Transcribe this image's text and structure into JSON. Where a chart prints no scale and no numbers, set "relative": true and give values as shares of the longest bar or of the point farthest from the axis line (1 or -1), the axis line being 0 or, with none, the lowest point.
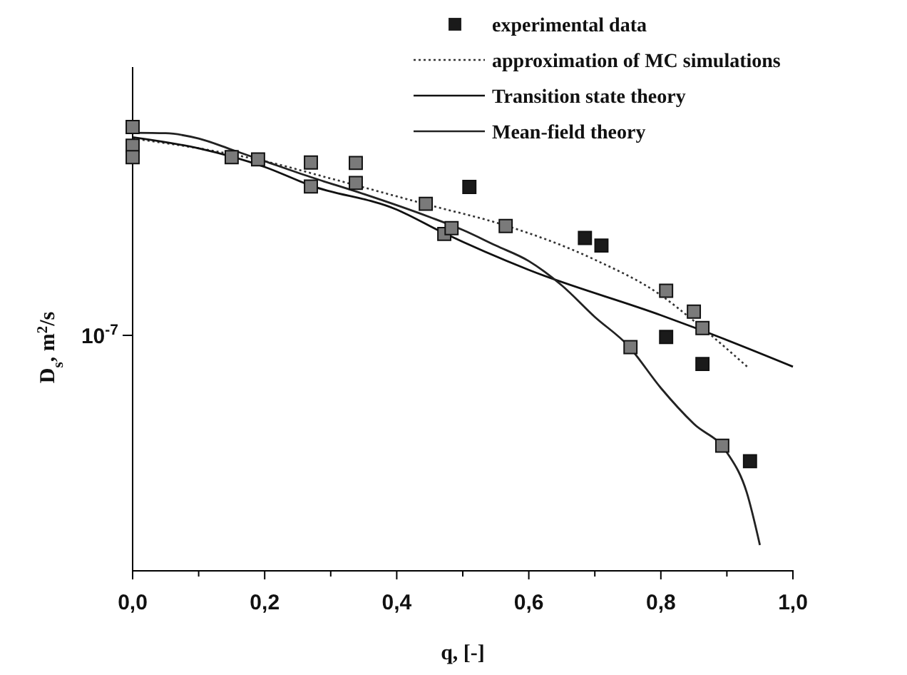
{
  "chart_data": {
    "type": "scatter",
    "relative": true,
    "xlabel": "q, [-]",
    "ylabel": "D$_{s}$, m$^{2}$/s",
    "xlim": [
      0,
      1
    ],
    "xticks": [
      {
        "value": 0,
        "label": "0,0"
      },
      {
        "value": 0.2,
        "label": "0,2"
      },
      {
        "value": 0.4,
        "label": "0,4"
      },
      {
        "value": 0.6,
        "label": "0,6"
      },
      {
        "value": 0.8,
        "label": "0,8"
      },
      {
        "value": 1,
        "label": "1,0"
      }
    ],
    "annotations": [
      "10$^{-7}$"
    ],
    "legend": "top right",
    "grid": false,
    "series": [
      {
        "name": "experimental data",
        "marker": "square",
        "color": "#1a1a1a",
        "x": [
          0,
          0,
          0,
          0.15,
          0.19,
          0.27,
          0.27,
          0.338,
          0.338,
          0.444,
          0.51,
          0.472,
          0.483,
          0.565,
          0.685,
          0.71,
          0.808,
          0.85,
          0.863,
          0.808,
          0.754,
          0.863,
          0.893,
          0.935
        ],
        "values": [
          1.0,
          0.958,
          0.932,
          0.932,
          0.927,
          0.92,
          0.866,
          0.919,
          0.874,
          0.827,
          0.865,
          0.759,
          0.772,
          0.777,
          0.75,
          0.733,
          0.631,
          0.584,
          0.547,
          0.527,
          0.504,
          0.466,
          0.282,
          0.247
        ],
        "colors": [
          "#7a7a7a",
          "#7a7a7a",
          "#7a7a7a",
          "#7a7a7a",
          "#7a7a7a",
          "#7a7a7a",
          "#7a7a7a",
          "#7a7a7a",
          "#7a7a7a",
          "#7a7a7a",
          "#1a1a1a",
          "#7a7a7a",
          "#7a7a7a",
          "#7a7a7a",
          "#1a1a1a",
          "#1a1a1a",
          "#7a7a7a",
          "#7a7a7a",
          "#7a7a7a",
          "#1a1a1a",
          "#7a7a7a",
          "#1a1a1a",
          "#7a7a7a",
          "#1a1a1a"
        ]
      },
      {
        "name": "approximation of MC simulations",
        "type": "line",
        "line_style": "dotted",
        "color": "#333333",
        "x": [
          0,
          0.1,
          0.2,
          0.3,
          0.444,
          0.565,
          0.7,
          0.8,
          0.85,
          0.933
        ],
        "values": [
          0.974,
          0.952,
          0.923,
          0.884,
          0.826,
          0.778,
          0.701,
          0.621,
          0.563,
          0.457
        ]
      },
      {
        "name": "Transition state theory",
        "type": "line",
        "line_style": "solid",
        "color": "#111111",
        "x": [
          0,
          0.1,
          0.2,
          0.27,
          0.4,
          0.47,
          0.6,
          0.8,
          0.86,
          1.0
        ],
        "values": [
          0.977,
          0.952,
          0.91,
          0.868,
          0.814,
          0.762,
          0.678,
          0.576,
          0.543,
          0.46
        ]
      },
      {
        "name": "Mean-field theory",
        "type": "line",
        "line_style": "solid",
        "color": "#222222",
        "x": [
          0,
          0.05,
          0.1,
          0.15,
          0.2,
          0.27,
          0.35,
          0.45,
          0.5,
          0.55,
          0.6,
          0.65,
          0.7,
          0.75,
          0.8,
          0.85,
          0.9,
          0.93,
          0.95
        ],
        "values": [
          0.987,
          0.986,
          0.974,
          0.949,
          0.923,
          0.887,
          0.849,
          0.797,
          0.768,
          0.733,
          0.698,
          0.643,
          0.572,
          0.508,
          0.412,
          0.331,
          0.267,
          0.177,
          0.058
        ]
      }
    ]
  }
}
